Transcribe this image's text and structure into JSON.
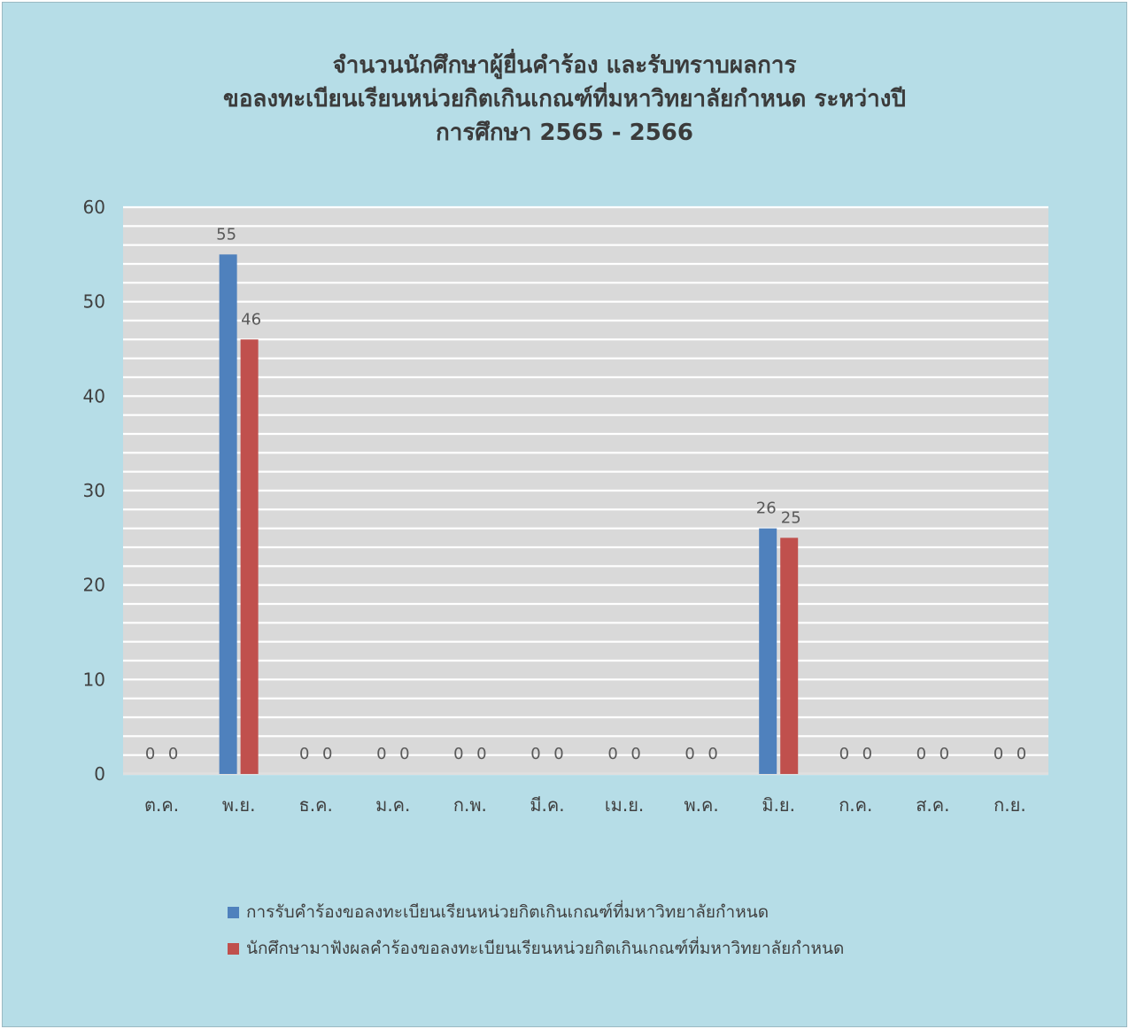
{
  "chart_data": {
    "type": "bar",
    "title_lines": [
      "จำนวนนักศึกษาผู้ยื่นคำร้อง และรับทราบผลการ",
      "ขอลงทะเบียนเรียนหน่วยกิตเกินเกณฑ์ที่มหาวิทยาลัยกำหนด ระหว่างปี",
      "การศึกษา 2565 - 2566"
    ],
    "categories": [
      "ต.ค.",
      "พ.ย.",
      "ธ.ค.",
      "ม.ค.",
      "ก.พ.",
      "มี.ค.",
      "เม.ย.",
      "พ.ค.",
      "มิ.ย.",
      "ก.ค.",
      "ส.ค.",
      "ก.ย."
    ],
    "series": [
      {
        "name": "การรับคำร้องขอลงทะเบียนเรียนหน่วยกิตเกินเกณฑ์ที่มหาวิทยาลัยกำหนด",
        "color": "#4f81bd",
        "values": [
          0,
          55,
          0,
          0,
          0,
          0,
          0,
          0,
          26,
          0,
          0,
          0
        ]
      },
      {
        "name": "นักศึกษามาฟังผลคำร้องขอลงทะเบียนเรียนหน่วยกิตเกินเกณฑ์ที่มหาวิทยาลัยกำหนด",
        "color": "#c0504d",
        "values": [
          0,
          46,
          0,
          0,
          0,
          0,
          0,
          0,
          25,
          0,
          0,
          0
        ]
      }
    ],
    "ylim": [
      0,
      60
    ],
    "yticks": [
      0,
      10,
      20,
      30,
      40,
      50,
      60
    ],
    "grid": true,
    "legend_position": "bottom",
    "data_labels": true,
    "background_color": "#b6dde7",
    "plot_background_color": "#d9d9d9"
  }
}
